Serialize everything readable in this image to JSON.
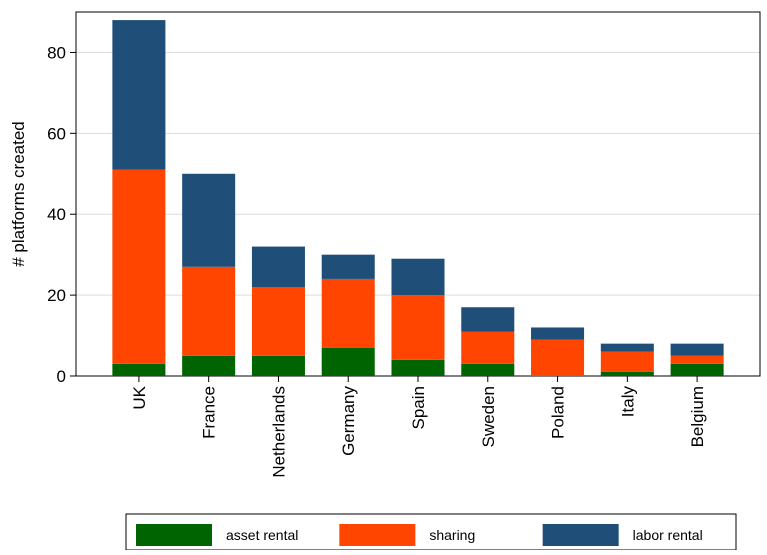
{
  "chart_data": {
    "type": "bar",
    "stacked": true,
    "title": "",
    "xlabel": "",
    "ylabel": "# platforms created",
    "ylim": [
      0,
      90
    ],
    "yticks": [
      0,
      20,
      40,
      60,
      80
    ],
    "grid": true,
    "legend_position": "bottom",
    "categories": [
      "UK",
      "France",
      "Netherlands",
      "Germany",
      "Spain",
      "Sweden",
      "Poland",
      "Italy",
      "Belgium"
    ],
    "series": [
      {
        "name": "asset rental",
        "color": "#006400",
        "values": [
          3,
          5,
          5,
          7,
          4,
          3,
          0,
          1,
          3
        ]
      },
      {
        "name": "sharing",
        "color": "#ff4500",
        "values": [
          48,
          22,
          17,
          17,
          16,
          8,
          9,
          5,
          2
        ]
      },
      {
        "name": "labor rental",
        "color": "#1f4e79",
        "values": [
          37,
          23,
          10,
          6,
          9,
          6,
          3,
          2,
          3
        ]
      }
    ]
  }
}
